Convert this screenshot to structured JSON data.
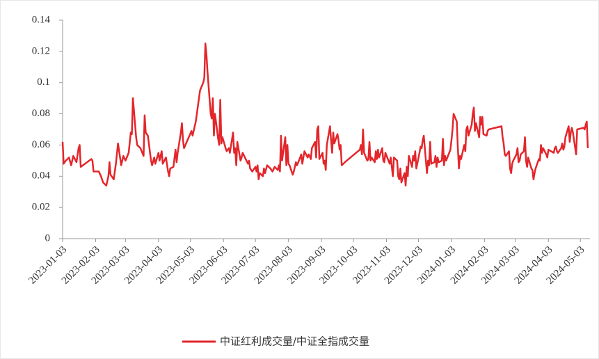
{
  "chart_data": {
    "type": "line",
    "x": [
      "2023-01-03",
      "2023-01-04",
      "2023-01-06",
      "2023-01-09",
      "2023-01-11",
      "2023-01-13",
      "2023-01-16",
      "2023-01-18",
      "2023-01-19",
      "2023-01-20",
      "2023-01-30",
      "2023-01-31",
      "2023-02-01",
      "2023-02-06",
      "2023-02-08",
      "2023-02-10",
      "2023-02-13",
      "2023-02-15",
      "2023-02-16",
      "2023-02-17",
      "2023-02-20",
      "2023-02-22",
      "2023-02-24",
      "2023-02-27",
      "2023-03-01",
      "2023-03-03",
      "2023-03-06",
      "2023-03-08",
      "2023-03-09",
      "2023-03-10",
      "2023-03-13",
      "2023-03-14",
      "2023-03-17",
      "2023-03-20",
      "2023-03-21",
      "2023-03-22",
      "2023-03-24",
      "2023-03-27",
      "2023-03-28",
      "2023-03-30",
      "2023-03-31",
      "2023-04-03",
      "2023-04-04",
      "2023-04-06",
      "2023-04-07",
      "2023-04-10",
      "2023-04-12",
      "2023-04-13",
      "2023-04-14",
      "2023-04-17",
      "2023-04-19",
      "2023-04-20",
      "2023-04-21",
      "2023-04-24",
      "2023-04-25",
      "2023-04-26",
      "2023-04-27",
      "2023-05-04",
      "2023-05-05",
      "2023-05-08",
      "2023-05-10",
      "2023-05-12",
      "2023-05-15",
      "2023-05-16",
      "2023-05-17",
      "2023-05-18",
      "2023-05-19",
      "2023-05-22",
      "2023-05-23",
      "2023-05-24",
      "2023-05-25",
      "2023-05-26",
      "2023-05-29",
      "2023-05-30",
      "2023-05-31",
      "2023-06-01",
      "2023-06-02",
      "2023-06-05",
      "2023-06-06",
      "2023-06-07",
      "2023-06-08",
      "2023-06-09",
      "2023-06-12",
      "2023-06-13",
      "2023-06-14",
      "2023-06-15",
      "2023-06-16",
      "2023-06-19",
      "2023-06-20",
      "2023-06-21",
      "2023-06-26",
      "2023-06-27",
      "2023-06-28",
      "2023-06-30",
      "2023-07-03",
      "2023-07-04",
      "2023-07-05",
      "2023-07-06",
      "2023-07-07",
      "2023-07-10",
      "2023-07-11",
      "2023-07-12",
      "2023-07-14",
      "2023-07-17",
      "2023-07-19",
      "2023-07-21",
      "2023-07-24",
      "2023-07-25",
      "2023-07-26",
      "2023-07-27",
      "2023-07-28",
      "2023-07-31",
      "2023-08-01",
      "2023-08-02",
      "2023-08-03",
      "2023-08-04",
      "2023-08-07",
      "2023-08-08",
      "2023-08-10",
      "2023-08-11",
      "2023-08-14",
      "2023-08-15",
      "2023-08-16",
      "2023-08-18",
      "2023-08-21",
      "2023-08-22",
      "2023-08-24",
      "2023-08-25",
      "2023-08-28",
      "2023-08-29",
      "2023-08-30",
      "2023-08-31",
      "2023-09-01",
      "2023-09-04",
      "2023-09-05",
      "2023-09-06",
      "2023-09-07",
      "2023-09-08",
      "2023-09-11",
      "2023-09-12",
      "2023-09-13",
      "2023-09-14",
      "2023-09-15",
      "2023-09-18",
      "2023-09-19",
      "2023-09-20",
      "2023-09-21",
      "2023-09-22",
      "2023-09-25",
      "2023-10-09",
      "2023-10-10",
      "2023-10-11",
      "2023-10-12",
      "2023-10-13",
      "2023-10-16",
      "2023-10-17",
      "2023-10-18",
      "2023-10-19",
      "2023-10-20",
      "2023-10-23",
      "2023-10-24",
      "2023-10-25",
      "2023-10-26",
      "2023-10-27",
      "2023-10-30",
      "2023-10-31",
      "2023-11-01",
      "2023-11-02",
      "2023-11-06",
      "2023-11-07",
      "2023-11-08",
      "2023-11-09",
      "2023-11-10",
      "2023-11-13",
      "2023-11-14",
      "2023-11-15",
      "2023-11-16",
      "2023-11-17",
      "2023-11-20",
      "2023-11-21",
      "2023-11-22",
      "2023-11-23",
      "2023-11-24",
      "2023-11-27",
      "2023-11-28",
      "2023-11-29",
      "2023-11-30",
      "2023-12-01",
      "2023-12-04",
      "2023-12-05",
      "2023-12-06",
      "2023-12-07",
      "2023-12-08",
      "2023-12-11",
      "2023-12-12",
      "2023-12-13",
      "2023-12-14",
      "2023-12-15",
      "2023-12-18",
      "2023-12-19",
      "2023-12-20",
      "2023-12-21",
      "2023-12-22",
      "2023-12-25",
      "2023-12-26",
      "2023-12-27",
      "2023-12-28",
      "2023-12-29",
      "2024-01-02",
      "2024-01-03",
      "2024-01-04",
      "2024-01-05",
      "2024-01-08",
      "2024-01-09",
      "2024-01-10",
      "2024-01-11",
      "2024-01-12",
      "2024-01-15",
      "2024-01-16",
      "2024-01-17",
      "2024-01-18",
      "2024-01-19",
      "2024-01-22",
      "2024-01-23",
      "2024-01-24",
      "2024-01-25",
      "2024-01-26",
      "2024-01-29",
      "2024-01-30",
      "2024-01-31",
      "2024-02-01",
      "2024-02-02",
      "2024-02-05",
      "2024-02-06",
      "2024-02-07",
      "2024-02-19",
      "2024-02-20",
      "2024-02-21",
      "2024-02-22",
      "2024-02-23",
      "2024-02-26",
      "2024-02-27",
      "2024-02-28",
      "2024-02-29",
      "2024-03-01",
      "2024-03-04",
      "2024-03-05",
      "2024-03-06",
      "2024-03-07",
      "2024-03-08",
      "2024-03-11",
      "2024-03-12",
      "2024-03-13",
      "2024-03-14",
      "2024-03-15",
      "2024-03-18",
      "2024-03-19",
      "2024-03-20",
      "2024-03-21",
      "2024-03-22",
      "2024-03-25",
      "2024-03-26",
      "2024-03-27",
      "2024-03-28",
      "2024-03-29",
      "2024-04-01",
      "2024-04-02",
      "2024-04-03",
      "2024-04-08",
      "2024-04-09",
      "2024-04-10",
      "2024-04-11",
      "2024-04-12",
      "2024-04-15",
      "2024-04-16",
      "2024-04-17",
      "2024-04-18",
      "2024-04-19",
      "2024-04-22",
      "2024-04-23",
      "2024-04-24",
      "2024-04-25",
      "2024-04-26",
      "2024-04-29",
      "2024-04-30",
      "2024-05-06",
      "2024-05-07",
      "2024-05-08",
      "2024-05-09",
      "2024-05-10"
    ],
    "series": [
      {
        "name": "中证红利成交量/中证全指成交量",
        "color": "#e3262b",
        "values": [
          0.062,
          0.048,
          0.05,
          0.052,
          0.047,
          0.053,
          0.049,
          0.058,
          0.06,
          0.046,
          0.051,
          0.05,
          0.043,
          0.043,
          0.04,
          0.036,
          0.034,
          0.04,
          0.049,
          0.041,
          0.038,
          0.048,
          0.061,
          0.047,
          0.053,
          0.05,
          0.055,
          0.068,
          0.067,
          0.09,
          0.065,
          0.06,
          0.058,
          0.053,
          0.079,
          0.068,
          0.066,
          0.05,
          0.047,
          0.052,
          0.048,
          0.055,
          0.05,
          0.056,
          0.048,
          0.052,
          0.043,
          0.04,
          0.045,
          0.046,
          0.057,
          0.049,
          0.055,
          0.068,
          0.074,
          0.063,
          0.058,
          0.069,
          0.066,
          0.075,
          0.085,
          0.095,
          0.1,
          0.103,
          0.125,
          0.118,
          0.107,
          0.08,
          0.077,
          0.09,
          0.066,
          0.08,
          0.064,
          0.06,
          0.089,
          0.061,
          0.065,
          0.058,
          0.056,
          0.057,
          0.058,
          0.055,
          0.068,
          0.055,
          0.058,
          0.047,
          0.062,
          0.05,
          0.052,
          0.055,
          0.048,
          0.05,
          0.045,
          0.043,
          0.046,
          0.043,
          0.047,
          0.038,
          0.042,
          0.04,
          0.045,
          0.042,
          0.047,
          0.045,
          0.043,
          0.046,
          0.044,
          0.047,
          0.043,
          0.066,
          0.05,
          0.065,
          0.047,
          0.06,
          0.048,
          0.047,
          0.041,
          0.043,
          0.049,
          0.047,
          0.052,
          0.054,
          0.048,
          0.056,
          0.052,
          0.054,
          0.051,
          0.058,
          0.062,
          0.052,
          0.07,
          0.072,
          0.051,
          0.055,
          0.048,
          0.05,
          0.044,
          0.06,
          0.072,
          0.063,
          0.055,
          0.068,
          0.061,
          0.067,
          0.063,
          0.057,
          0.06,
          0.047,
          0.049,
          0.057,
          0.06,
          0.054,
          0.07,
          0.055,
          0.05,
          0.051,
          0.062,
          0.05,
          0.052,
          0.049,
          0.056,
          0.051,
          0.057,
          0.052,
          0.058,
          0.05,
          0.049,
          0.055,
          0.048,
          0.052,
          0.046,
          0.04,
          0.052,
          0.05,
          0.04,
          0.038,
          0.045,
          0.036,
          0.042,
          0.034,
          0.046,
          0.04,
          0.053,
          0.046,
          0.053,
          0.05,
          0.056,
          0.045,
          0.055,
          0.059,
          0.058,
          0.063,
          0.066,
          0.042,
          0.05,
          0.047,
          0.062,
          0.048,
          0.049,
          0.053,
          0.046,
          0.052,
          0.049,
          0.05,
          0.064,
          0.047,
          0.053,
          0.05,
          0.057,
          0.063,
          0.07,
          0.08,
          0.075,
          0.058,
          0.045,
          0.053,
          0.051,
          0.06,
          0.056,
          0.07,
          0.072,
          0.066,
          0.073,
          0.08,
          0.084,
          0.069,
          0.074,
          0.065,
          0.078,
          0.073,
          0.078,
          0.067,
          0.066,
          0.069,
          0.07,
          0.072,
          0.065,
          0.061,
          0.054,
          0.053,
          0.056,
          0.045,
          0.042,
          0.048,
          0.05,
          0.054,
          0.058,
          0.049,
          0.05,
          0.054,
          0.056,
          0.065,
          0.05,
          0.046,
          0.052,
          0.045,
          0.044,
          0.038,
          0.042,
          0.045,
          0.051,
          0.05,
          0.06,
          0.055,
          0.058,
          0.054,
          0.052,
          0.057,
          0.055,
          0.058,
          0.059,
          0.056,
          0.055,
          0.058,
          0.061,
          0.057,
          0.059,
          0.065,
          0.072,
          0.062,
          0.068,
          0.071,
          0.068,
          0.054,
          0.07,
          0.071,
          0.07,
          0.073,
          0.075,
          0.058
        ]
      }
    ],
    "xlim": [
      "2023-01-03",
      "2024-05-12"
    ],
    "xticks": [
      "2023-01-03",
      "2023-02-03",
      "2023-03-03",
      "2023-04-03",
      "2023-05-03",
      "2023-06-03",
      "2023-07-03",
      "2023-08-03",
      "2023-09-03",
      "2023-10-03",
      "2023-11-03",
      "2023-12-03",
      "2024-01-03",
      "2024-02-03",
      "2024-03-03",
      "2024-04-03",
      "2024-05-03"
    ],
    "ylim": [
      0,
      0.14
    ],
    "yticks": [
      0,
      0.02,
      0.04,
      0.06,
      0.08,
      0.1,
      0.12,
      0.14
    ],
    "legend": "bottom"
  }
}
